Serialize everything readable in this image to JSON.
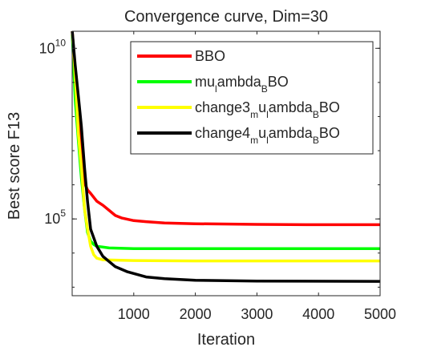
{
  "chart_data": {
    "type": "line",
    "title": "Convergence curve, Dim=30",
    "xlabel": "Iteration",
    "ylabel": "Best score F13",
    "xlim": [
      0,
      5000
    ],
    "ylim_log10": [
      2.75,
      10.5
    ],
    "yscale": "log",
    "xticks": [
      1000,
      2000,
      3000,
      4000,
      5000
    ],
    "yticks": [
      {
        "log10": 5,
        "base": "10",
        "exp": "5"
      },
      {
        "log10": 10,
        "base": "10",
        "exp": "10"
      }
    ],
    "grid": false,
    "box": true,
    "legend_position": "top-right",
    "series": [
      {
        "name_parts": [
          {
            "t": "BBO"
          }
        ],
        "color": "#ff0000",
        "points": [
          [
            1,
            10.5
          ],
          [
            50,
            9.3
          ],
          [
            100,
            8.2
          ],
          [
            150,
            6.9
          ],
          [
            200,
            6.05
          ],
          [
            250,
            5.85
          ],
          [
            300,
            5.75
          ],
          [
            400,
            5.52
          ],
          [
            500,
            5.4
          ],
          [
            600,
            5.25
          ],
          [
            700,
            5.1
          ],
          [
            800,
            5.03
          ],
          [
            1000,
            4.95
          ],
          [
            1200,
            4.92
          ],
          [
            1500,
            4.88
          ],
          [
            2000,
            4.86
          ],
          [
            3000,
            4.84
          ],
          [
            4000,
            4.83
          ],
          [
            5000,
            4.83
          ]
        ]
      },
      {
        "name_parts": [
          {
            "t": "mu"
          },
          {
            "t": "l",
            "sub": true
          },
          {
            "t": "ambda"
          },
          {
            "t": "B",
            "sub": true
          },
          {
            "t": "BO"
          }
        ],
        "color": "#00ff00",
        "points": [
          [
            1,
            10.4
          ],
          [
            50,
            8.5
          ],
          [
            100,
            7.3
          ],
          [
            150,
            6.2
          ],
          [
            200,
            5.3
          ],
          [
            250,
            4.6
          ],
          [
            300,
            4.35
          ],
          [
            350,
            4.25
          ],
          [
            400,
            4.2
          ],
          [
            600,
            4.15
          ],
          [
            1000,
            4.13
          ],
          [
            2000,
            4.13
          ],
          [
            5000,
            4.13
          ]
        ]
      },
      {
        "name_parts": [
          {
            "t": "change3"
          },
          {
            "t": "m",
            "sub": true
          },
          {
            "t": "u"
          },
          {
            "t": "l",
            "sub": true
          },
          {
            "t": "ambda"
          },
          {
            "t": "B",
            "sub": true
          },
          {
            "t": "BO"
          }
        ],
        "color": "#ffff00",
        "points": [
          [
            1,
            10.5
          ],
          [
            50,
            9.2
          ],
          [
            100,
            7.5
          ],
          [
            150,
            6.5
          ],
          [
            200,
            5.3
          ],
          [
            250,
            4.7
          ],
          [
            300,
            4.2
          ],
          [
            350,
            3.95
          ],
          [
            400,
            3.85
          ],
          [
            500,
            3.8
          ],
          [
            1000,
            3.78
          ],
          [
            2000,
            3.77
          ],
          [
            5000,
            3.77
          ]
        ]
      },
      {
        "name_parts": [
          {
            "t": "change4"
          },
          {
            "t": "m",
            "sub": true
          },
          {
            "t": "u"
          },
          {
            "t": "l",
            "sub": true
          },
          {
            "t": "ambda"
          },
          {
            "t": "B",
            "sub": true
          },
          {
            "t": "BO"
          }
        ],
        "color": "#000000",
        "points": [
          [
            1,
            10.5
          ],
          [
            50,
            9.5
          ],
          [
            100,
            8.6
          ],
          [
            150,
            7.7
          ],
          [
            200,
            6.5
          ],
          [
            250,
            5.5
          ],
          [
            300,
            4.7
          ],
          [
            400,
            4.2
          ],
          [
            500,
            3.9
          ],
          [
            700,
            3.6
          ],
          [
            900,
            3.45
          ],
          [
            1200,
            3.3
          ],
          [
            1500,
            3.25
          ],
          [
            2000,
            3.2
          ],
          [
            3000,
            3.18
          ],
          [
            5000,
            3.17
          ]
        ]
      }
    ]
  }
}
